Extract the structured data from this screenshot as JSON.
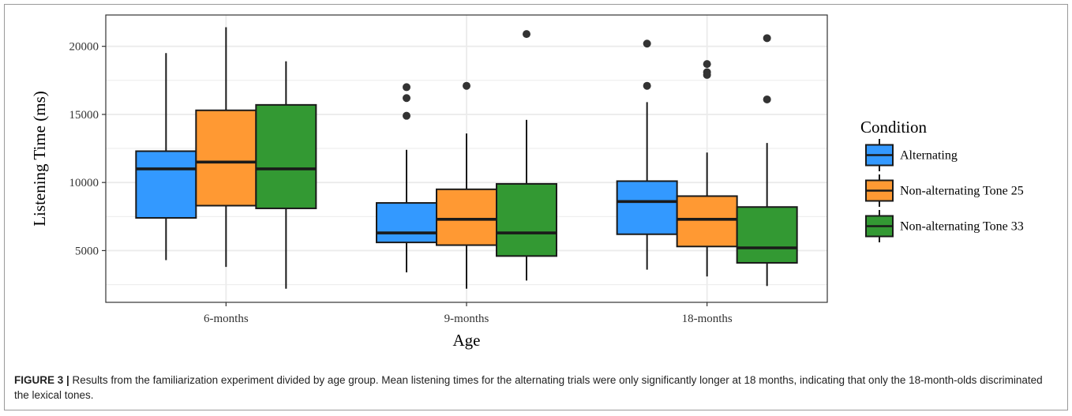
{
  "colors": {
    "alternating": "#3399ff",
    "tone25": "#ff9933",
    "tone33": "#339933",
    "panel_bg": "#ffffff",
    "grid": "#ebebeb",
    "outline": "#1a1a1a"
  },
  "caption": {
    "label": "FIGURE 3 |",
    "text": " Results from the familiarization experiment divided by age group. Mean listening times for the alternating trials were only significantly longer at 18 months, indicating that only the 18-month-olds discriminated the lexical tones."
  },
  "chart_data": {
    "type": "box",
    "xlabel": "Age",
    "ylabel": "Listening Time (ms)",
    "categories": [
      "6-months",
      "9-months",
      "18-months"
    ],
    "ylim": [
      1200,
      22300
    ],
    "yticks": [
      5000,
      10000,
      15000,
      20000
    ],
    "grid": true,
    "legend": {
      "title": "Condition",
      "position": "right"
    },
    "series": [
      {
        "name": "Alternating",
        "color": "#3399ff",
        "boxes": [
          {
            "category": "6-months",
            "min": 4300,
            "q1": 7400,
            "median": 11000,
            "q3": 12300,
            "max": 19500,
            "outliers": []
          },
          {
            "category": "9-months",
            "min": 3400,
            "q1": 5600,
            "median": 6300,
            "q3": 8500,
            "max": 12400,
            "outliers": [
              14900,
              16200,
              17000
            ]
          },
          {
            "category": "18-months",
            "min": 3600,
            "q1": 6200,
            "median": 8600,
            "q3": 10100,
            "max": 15900,
            "outliers": [
              17100,
              20200
            ]
          }
        ]
      },
      {
        "name": "Non-alternating Tone 25",
        "color": "#ff9933",
        "boxes": [
          {
            "category": "6-months",
            "min": 3800,
            "q1": 8300,
            "median": 11500,
            "q3": 15300,
            "max": 21400,
            "outliers": []
          },
          {
            "category": "9-months",
            "min": 2200,
            "q1": 5400,
            "median": 7300,
            "q3": 9500,
            "max": 13600,
            "outliers": [
              17100
            ]
          },
          {
            "category": "18-months",
            "min": 3100,
            "q1": 5300,
            "median": 7300,
            "q3": 9000,
            "max": 12200,
            "outliers": [
              17900,
              18100,
              18700
            ]
          }
        ]
      },
      {
        "name": "Non-alternating Tone 33",
        "color": "#339933",
        "boxes": [
          {
            "category": "6-months",
            "min": 2200,
            "q1": 8100,
            "median": 11000,
            "q3": 15700,
            "max": 18900,
            "outliers": []
          },
          {
            "category": "9-months",
            "min": 2800,
            "q1": 4600,
            "median": 6300,
            "q3": 9900,
            "max": 14600,
            "outliers": [
              20900
            ]
          },
          {
            "category": "18-months",
            "min": 2400,
            "q1": 4100,
            "median": 5200,
            "q3": 8200,
            "max": 12900,
            "outliers": [
              16100,
              20600
            ]
          }
        ]
      }
    ]
  }
}
